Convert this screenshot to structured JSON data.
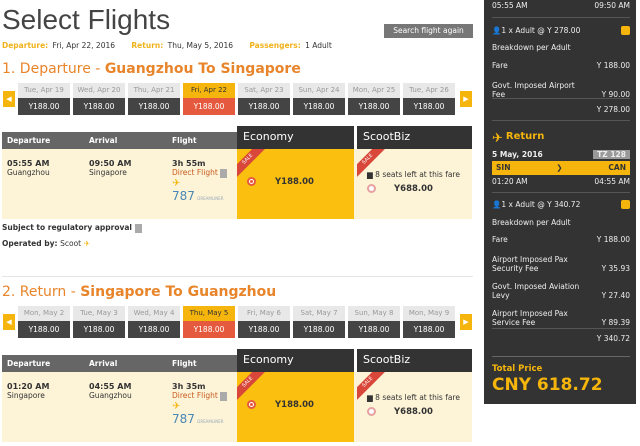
{
  "header": {
    "title": "Select Flights",
    "search_again": "Search flight again",
    "departure_label": "Departure:",
    "departure_value": "Fri, Apr 22, 2016",
    "return_label": "Return:",
    "return_value": "Thu, May 5, 2016",
    "passengers_label": "Passengers:",
    "passengers_value": "1 Adult"
  },
  "departure": {
    "heading_prefix": "1. Departure - ",
    "heading_route": "Guangzhou To Singapore",
    "dates": [
      {
        "d": "Tue, Apr 19",
        "p": "Y188.00"
      },
      {
        "d": "Wed, Apr 20",
        "p": "Y188.00"
      },
      {
        "d": "Thu, Apr 21",
        "p": "Y188.00"
      },
      {
        "d": "Fri, Apr 22",
        "p": "Y188.00",
        "selected": true
      },
      {
        "d": "Sat, Apr 23",
        "p": "Y188.00"
      },
      {
        "d": "Sun, Apr 24",
        "p": "Y188.00"
      },
      {
        "d": "Mon, Apr 25",
        "p": "Y188.00"
      },
      {
        "d": "Tue, Apr 26",
        "p": "Y188.00"
      }
    ],
    "flight": {
      "dep_time": "05:55 AM",
      "dep_city": "Guangzhou",
      "arr_time": "09:50 AM",
      "arr_city": "Singapore",
      "duration": "3h 55m",
      "type": "Direct Flight",
      "aircraft": "787",
      "aircraft_brand": "DREAMLINER",
      "economy_price": "Y188.00",
      "biz_seats": "8 seats left at this fare",
      "biz_price": "Y688.00"
    },
    "subject": "Subject to regulatory approval",
    "operated_label": "Operated by:",
    "operated_value": "Scoot"
  },
  "return": {
    "heading_prefix": "2. Return - ",
    "heading_route": "Singapore To Guangzhou",
    "dates": [
      {
        "d": "Mon, May 2",
        "p": "Y188.00"
      },
      {
        "d": "Tue, May 3",
        "p": "Y188.00"
      },
      {
        "d": "Wed, May 4",
        "p": "Y188.00"
      },
      {
        "d": "Thu, May 5",
        "p": "Y188.00",
        "selected": true
      },
      {
        "d": "Fri, May 6",
        "p": "Y188.00"
      },
      {
        "d": "Sat, May 7",
        "p": "Y188.00"
      },
      {
        "d": "Sun, May 8",
        "p": "Y188.00"
      },
      {
        "d": "Mon, May 9",
        "p": "Y188.00"
      }
    ],
    "flight": {
      "dep_time": "01:20 AM",
      "dep_city": "Singapore",
      "arr_time": "04:55 AM",
      "arr_city": "Guangzhou",
      "duration": "3h 35m",
      "type": "Direct Flight",
      "aircraft": "787",
      "aircraft_brand": "DREAMLINER",
      "economy_price": "Y188.00",
      "biz_seats": "8 seats left at this fare",
      "biz_price": "Y688.00"
    }
  },
  "table": {
    "departure": "Departure",
    "arrival": "Arrival",
    "flight": "Flight",
    "economy": "Economy",
    "scootbiz": "ScootBiz",
    "sale": "SALE"
  },
  "summary": {
    "out_dep": "05:55 AM",
    "out_arr": "09:50 AM",
    "out_pax": "1 x Adult @ Y 278.00",
    "breakdown": "Breakdown per Adult",
    "out_items": [
      {
        "l": "Fare",
        "v": "Y 188.00"
      },
      {
        "l": "Govt. Imposed Airport Fee",
        "v": "Y 90.00"
      }
    ],
    "out_total": "Y 278.00",
    "return_label": "Return",
    "ret_date": "5 May, 2016",
    "ret_flight": "TZ 128",
    "ret_from": "SIN",
    "ret_to": "CAN",
    "ret_dep": "01:20 AM",
    "ret_arr": "04:55 AM",
    "ret_pax": "1 x Adult @ Y 340.72",
    "ret_items": [
      {
        "l": "Fare",
        "v": "Y 188.00"
      },
      {
        "l": "Airport Imposed Pax Security Fee",
        "v": "Y 35.93"
      },
      {
        "l": "Govt. Imposed Aviation Levy",
        "v": "Y 27.40"
      },
      {
        "l": "Airport Imposed Pax Service Fee",
        "v": "Y 89.39"
      }
    ],
    "ret_total": "Y 340.72",
    "total_label": "Total Price",
    "total_value": "CNY 618.72"
  },
  "colors": {
    "accent": "#f5b50c",
    "orange": "#e8842a",
    "selected_price": "#e55a3e",
    "dark": "#333333"
  }
}
